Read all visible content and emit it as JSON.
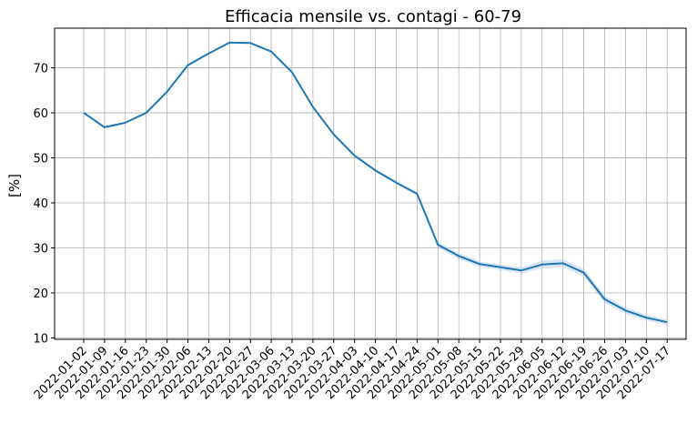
{
  "chart_data": {
    "type": "line",
    "title": "Efficacia mensile vs. contagi - 60-79",
    "xlabel": "",
    "ylabel": "[%]",
    "ylim": [
      9.7,
      78.8
    ],
    "yticks": [
      10,
      20,
      30,
      40,
      50,
      60,
      70
    ],
    "grid": true,
    "line_color": "#1f77b4",
    "band_color": "#aec7e8",
    "categories": [
      "2022-01-02",
      "2022-01-09",
      "2022-01-16",
      "2022-01-23",
      "2022-01-30",
      "2022-02-06",
      "2022-02-13",
      "2022-02-20",
      "2022-02-27",
      "2022-03-06",
      "2022-03-13",
      "2022-03-20",
      "2022-03-27",
      "2022-04-03",
      "2022-04-10",
      "2022-04-17",
      "2022-04-24",
      "2022-05-01",
      "2022-05-08",
      "2022-05-15",
      "2022-05-22",
      "2022-05-29",
      "2022-06-05",
      "2022-06-12",
      "2022-06-19",
      "2022-06-26",
      "2022-07-03",
      "2022-07-10",
      "2022-07-17"
    ],
    "series": [
      {
        "values": [
          60.0,
          56.8,
          57.8,
          60.0,
          64.7,
          70.6,
          73.2,
          75.6,
          75.5,
          73.6,
          69.0,
          61.3,
          55.2,
          50.5,
          47.2,
          44.5,
          42.0,
          30.7,
          28.2,
          26.4,
          25.7,
          25.0,
          26.3,
          26.6,
          24.5,
          18.6,
          16.1,
          14.5,
          13.5
        ],
        "lower": [
          59.8,
          56.5,
          57.6,
          59.8,
          64.5,
          70.4,
          73.0,
          75.4,
          75.3,
          73.4,
          68.8,
          61.1,
          54.9,
          50.2,
          46.9,
          44.2,
          41.6,
          30.1,
          27.5,
          25.8,
          25.1,
          24.3,
          25.4,
          25.7,
          23.6,
          17.8,
          15.4,
          13.9,
          12.9
        ],
        "upper": [
          60.2,
          57.1,
          58.0,
          60.2,
          64.9,
          70.8,
          73.4,
          75.8,
          75.7,
          73.8,
          69.2,
          61.5,
          55.5,
          50.8,
          47.5,
          44.8,
          42.4,
          31.3,
          28.9,
          27.0,
          26.3,
          25.7,
          27.2,
          27.5,
          25.4,
          19.4,
          16.8,
          15.1,
          14.1
        ]
      }
    ]
  }
}
